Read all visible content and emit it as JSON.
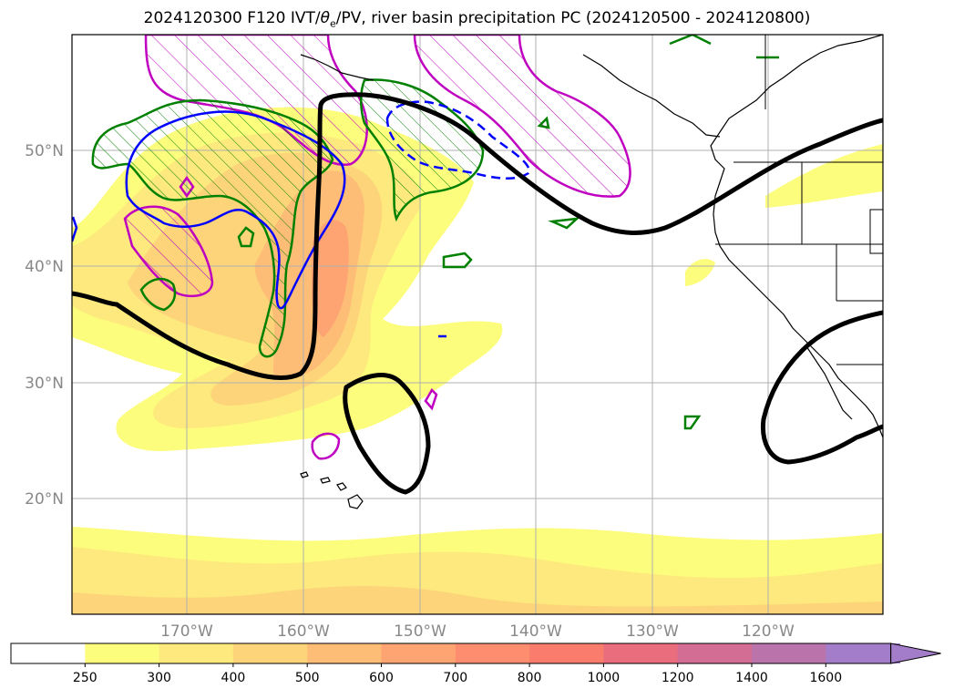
{
  "title": "2024120300 F120 IVT/θe/PV, river basin precipitation PC (2024120500 - 2024120800)",
  "title_parts": {
    "prefix": "2024120300 F120 IVT/",
    "theta": "θ",
    "sub": "e",
    "suffix": "/PV, river basin precipitation PC (2024120500 - 2024120800)"
  },
  "latitude_labels": [
    "50°N",
    "40°N",
    "30°N",
    "20°N"
  ],
  "longitude_labels": [
    "170°W",
    "160°W",
    "150°W",
    "140°W",
    "130°W",
    "120°W"
  ],
  "colorbar": {
    "tick_labels": [
      "250",
      "300",
      "400",
      "500",
      "600",
      "700",
      "800",
      "1000",
      "1200",
      "1400",
      "1600"
    ],
    "colors": [
      "#ffffff",
      "#fdfd7d",
      "#fde97d",
      "#fdd47a",
      "#fdbd76",
      "#fda472",
      "#fd8d6e",
      "#f97c6c",
      "#ea6d7d",
      "#d36d93",
      "#bb73ab",
      "#a37dc9"
    ],
    "extend": "max"
  },
  "colors": {
    "ivt_low": "#fdfd7d",
    "ivt_mid": "#fdd47a",
    "ivt_high": "#fda472",
    "ivt_peak": "#f97c6c",
    "theta_e_contour": "#000000",
    "pv_green": "#008000",
    "pv_magenta": "#c000c0",
    "blue_contour": "#0000ff"
  }
}
